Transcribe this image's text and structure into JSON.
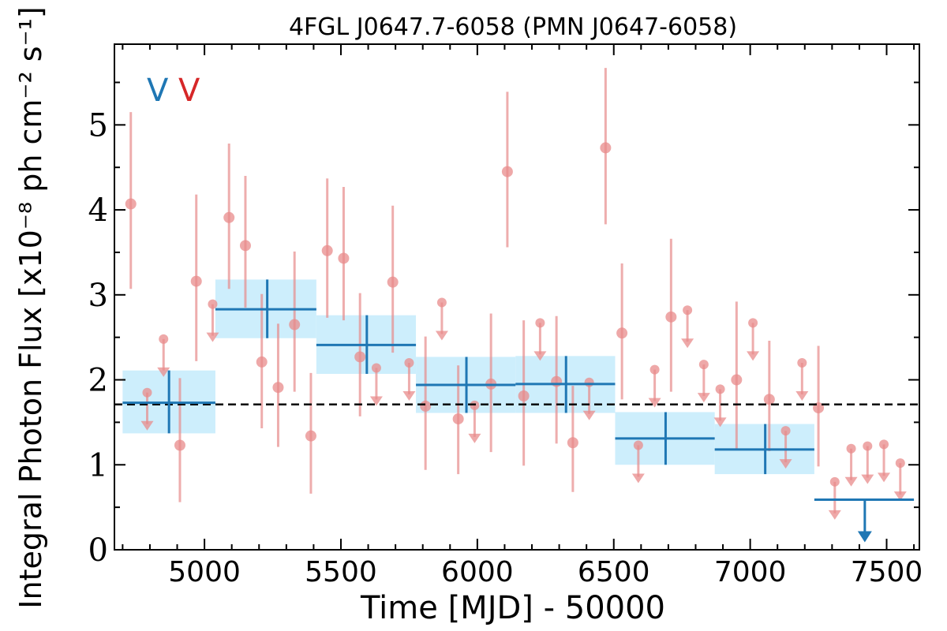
{
  "chart_data": {
    "type": "scatter",
    "title": "4FGL J0647.7-6058 (PMN J0647-6058)",
    "xlabel": "Time [MJD] - 50000",
    "ylabel": "Integral Photon Flux [x10⁻⁸ ph cm⁻² s⁻¹]",
    "xlim": [
      4670,
      7620
    ],
    "ylim": [
      0,
      5.95
    ],
    "xticks": [
      5000,
      5500,
      6000,
      6500,
      7000,
      7500
    ],
    "yticks": [
      0,
      1,
      2,
      3,
      4,
      5
    ],
    "grid": false,
    "legend_markers": [
      {
        "text": "V",
        "color": "#1f77b4"
      },
      {
        "text": "V",
        "color": "#d62728"
      }
    ],
    "reference_line": {
      "y": 1.71,
      "style": "dashed",
      "color": "#000000"
    },
    "colors": {
      "long_bins": "#1f77b4",
      "long_bins_fill": "#cdeefc",
      "short_bins": "#e88b8b"
    },
    "series": [
      {
        "name": "",
        "kind": "binned_with_band",
        "points": [
          {
            "x0": 4700,
            "x1": 5040,
            "xc": 4870,
            "y": 1.73,
            "err_lo": 1.37,
            "err_hi": 2.11
          },
          {
            "x0": 5040,
            "x1": 5410,
            "xc": 5230,
            "y": 2.83,
            "err_lo": 2.49,
            "err_hi": 3.18
          },
          {
            "x0": 5410,
            "x1": 5775,
            "xc": 5595,
            "y": 2.41,
            "err_lo": 2.07,
            "err_hi": 2.76
          },
          {
            "x0": 5775,
            "x1": 6140,
            "xc": 5960,
            "y": 1.94,
            "err_lo": 1.61,
            "err_hi": 2.27
          },
          {
            "x0": 6140,
            "x1": 6505,
            "xc": 6325,
            "y": 1.95,
            "err_lo": 1.61,
            "err_hi": 2.28
          },
          {
            "x0": 6505,
            "x1": 6870,
            "xc": 6690,
            "y": 1.31,
            "err_lo": 1.0,
            "err_hi": 1.62
          },
          {
            "x0": 6870,
            "x1": 7235,
            "xc": 7055,
            "y": 1.18,
            "err_lo": 0.89,
            "err_hi": 1.48
          },
          {
            "x0": 7235,
            "x1": 7600,
            "xc": 7420,
            "y": 0.59,
            "upper_limit": true
          }
        ]
      },
      {
        "name": "",
        "kind": "points",
        "points": [
          {
            "x": 4730,
            "y": 4.07,
            "err_lo": 3.07,
            "err_hi": 5.15
          },
          {
            "x": 4790,
            "y": 1.85,
            "upper_limit": true
          },
          {
            "x": 4850,
            "y": 2.48,
            "upper_limit": true
          },
          {
            "x": 4910,
            "y": 1.23,
            "err_lo": 0.56,
            "err_hi": 2.02
          },
          {
            "x": 4970,
            "y": 3.16,
            "err_lo": 2.22,
            "err_hi": 4.18
          },
          {
            "x": 5030,
            "y": 2.89,
            "upper_limit": true
          },
          {
            "x": 5090,
            "y": 3.91,
            "err_lo": 3.07,
            "err_hi": 4.78
          },
          {
            "x": 5150,
            "y": 3.58,
            "err_lo": 2.85,
            "err_hi": 4.4
          },
          {
            "x": 5210,
            "y": 2.21,
            "err_lo": 1.43,
            "err_hi": 3.01
          },
          {
            "x": 5270,
            "y": 1.91,
            "err_lo": 1.21,
            "err_hi": 2.66
          },
          {
            "x": 5330,
            "y": 2.65,
            "err_lo": 1.86,
            "err_hi": 3.51
          },
          {
            "x": 5390,
            "y": 1.34,
            "err_lo": 0.66,
            "err_hi": 2.08
          },
          {
            "x": 5450,
            "y": 3.52,
            "err_lo": 2.73,
            "err_hi": 4.37
          },
          {
            "x": 5510,
            "y": 3.43,
            "err_lo": 2.7,
            "err_hi": 4.27
          },
          {
            "x": 5570,
            "y": 2.27,
            "err_lo": 1.57,
            "err_hi": 3.02
          },
          {
            "x": 5630,
            "y": 2.14,
            "upper_limit": true
          },
          {
            "x": 5690,
            "y": 3.15,
            "err_lo": 2.32,
            "err_hi": 4.05
          },
          {
            "x": 5750,
            "y": 2.2,
            "upper_limit": true
          },
          {
            "x": 5810,
            "y": 1.69,
            "err_lo": 0.94,
            "err_hi": 2.51
          },
          {
            "x": 5870,
            "y": 2.91,
            "upper_limit": true
          },
          {
            "x": 5930,
            "y": 1.54,
            "err_lo": 0.89,
            "err_hi": 2.17
          },
          {
            "x": 5990,
            "y": 1.7,
            "upper_limit": true
          },
          {
            "x": 6050,
            "y": 1.95,
            "err_lo": 1.15,
            "err_hi": 2.78
          },
          {
            "x": 6110,
            "y": 4.45,
            "err_lo": 3.56,
            "err_hi": 5.39
          },
          {
            "x": 6170,
            "y": 1.81,
            "err_lo": 0.99,
            "err_hi": 2.7
          },
          {
            "x": 6230,
            "y": 2.67,
            "upper_limit": true
          },
          {
            "x": 6290,
            "y": 1.98,
            "err_lo": 1.25,
            "err_hi": 2.75
          },
          {
            "x": 6350,
            "y": 1.26,
            "err_lo": 0.68,
            "err_hi": 1.93
          },
          {
            "x": 6410,
            "y": 1.97,
            "upper_limit": true
          },
          {
            "x": 6470,
            "y": 4.73,
            "err_lo": 3.83,
            "err_hi": 5.67
          },
          {
            "x": 6530,
            "y": 2.55,
            "err_lo": 1.77,
            "err_hi": 3.37
          },
          {
            "x": 6590,
            "y": 1.23,
            "upper_limit": true
          },
          {
            "x": 6650,
            "y": 2.12,
            "upper_limit": true
          },
          {
            "x": 6710,
            "y": 2.74,
            "err_lo": 1.86,
            "err_hi": 3.66
          },
          {
            "x": 6770,
            "y": 2.82,
            "upper_limit": true
          },
          {
            "x": 6830,
            "y": 2.18,
            "upper_limit": true
          },
          {
            "x": 6890,
            "y": 1.89,
            "upper_limit": true
          },
          {
            "x": 6950,
            "y": 2.0,
            "err_lo": 1.17,
            "err_hi": 2.92
          },
          {
            "x": 7010,
            "y": 2.67,
            "upper_limit": true
          },
          {
            "x": 7070,
            "y": 1.77,
            "err_lo": 1.16,
            "err_hi": 2.46
          },
          {
            "x": 7130,
            "y": 1.4,
            "upper_limit": true
          },
          {
            "x": 7190,
            "y": 2.2,
            "upper_limit": true
          },
          {
            "x": 7250,
            "y": 1.67,
            "err_lo": 0.98,
            "err_hi": 2.4
          },
          {
            "x": 7310,
            "y": 0.8,
            "upper_limit": true
          },
          {
            "x": 7370,
            "y": 1.19,
            "upper_limit": true
          },
          {
            "x": 7430,
            "y": 1.22,
            "upper_limit": true
          },
          {
            "x": 7490,
            "y": 1.24,
            "upper_limit": true
          },
          {
            "x": 7550,
            "y": 1.02,
            "upper_limit": true
          }
        ]
      }
    ]
  }
}
